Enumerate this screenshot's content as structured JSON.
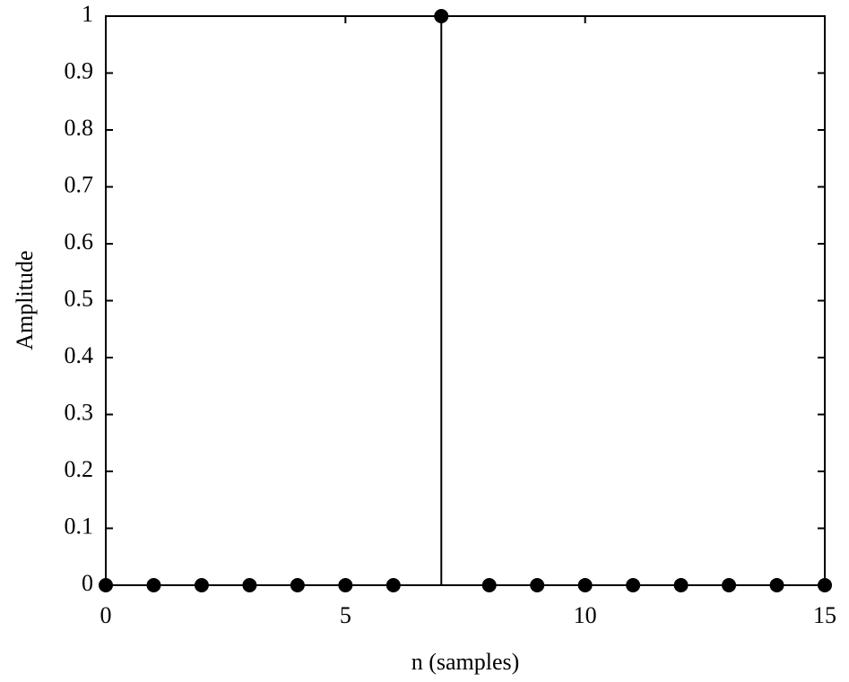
{
  "chart_data": {
    "type": "stem",
    "xlabel": "n (samples)",
    "ylabel": "Amplitude",
    "x": [
      0,
      1,
      2,
      3,
      4,
      5,
      6,
      7,
      8,
      9,
      10,
      11,
      12,
      13,
      14,
      15
    ],
    "values": [
      0,
      0,
      0,
      0,
      0,
      0,
      0,
      1,
      0,
      0,
      0,
      0,
      0,
      0,
      0,
      0
    ],
    "color": "#000000",
    "xlim": [
      0,
      15
    ],
    "xticks": [
      0,
      5,
      10,
      15
    ],
    "ylim": [
      0,
      1
    ],
    "yticks": [
      0,
      0.1,
      0.2,
      0.3,
      0.4,
      0.5,
      0.6,
      0.7,
      0.8,
      0.9,
      1
    ]
  }
}
